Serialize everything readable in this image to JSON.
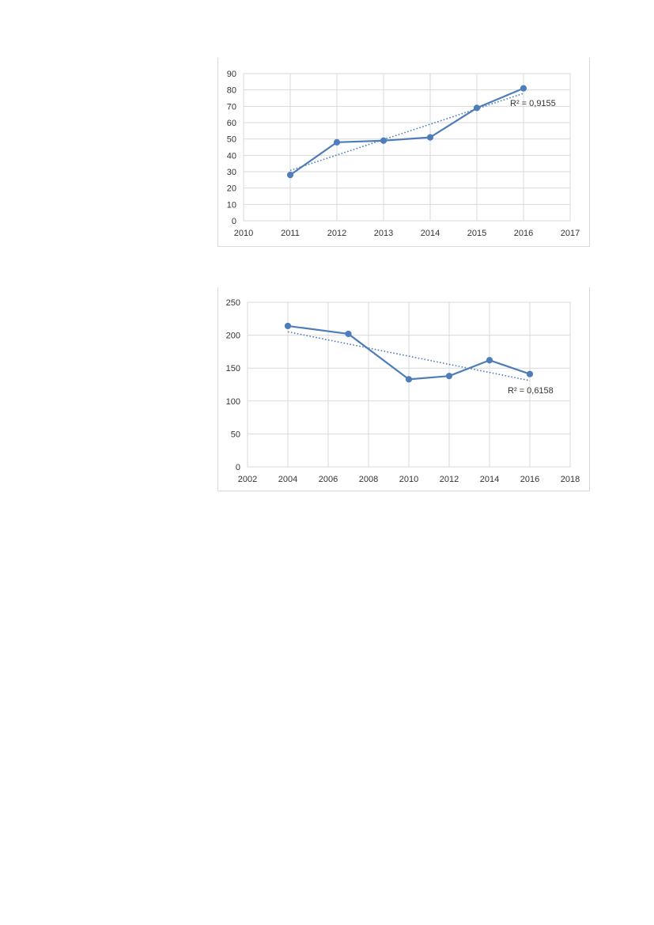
{
  "chart_data": [
    {
      "type": "line",
      "x": [
        2011,
        2012,
        2013,
        2014,
        2015,
        2016
      ],
      "series": [
        {
          "values": [
            28,
            48,
            49,
            51,
            69,
            81
          ]
        }
      ],
      "trendline": {
        "type": "linear",
        "r2_label": "R² = 0,9155"
      },
      "xlim": [
        2010,
        2017
      ],
      "ylim": [
        0,
        90
      ],
      "xticks": [
        2010,
        2011,
        2012,
        2013,
        2014,
        2015,
        2016,
        2017
      ],
      "yticks": [
        0,
        10,
        20,
        30,
        40,
        50,
        60,
        70,
        80,
        90
      ],
      "grid": true,
      "series_color": "#4f7dba"
    },
    {
      "type": "line",
      "x": [
        2004,
        2007,
        2010,
        2012,
        2014,
        2016
      ],
      "series": [
        {
          "values": [
            214,
            202,
            133,
            138,
            162,
            141
          ]
        }
      ],
      "trendline": {
        "type": "linear",
        "r2_label": "R² = 0,6158"
      },
      "xlim": [
        2002,
        2018
      ],
      "ylim": [
        0,
        250
      ],
      "xticks": [
        2002,
        2004,
        2006,
        2008,
        2010,
        2012,
        2014,
        2016,
        2018
      ],
      "yticks": [
        0,
        50,
        100,
        150,
        200,
        250
      ],
      "grid": true,
      "series_color": "#4f7dba"
    }
  ]
}
